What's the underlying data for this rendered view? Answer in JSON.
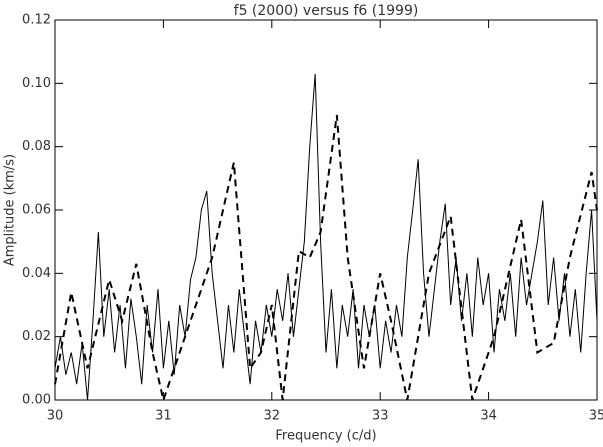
{
  "chart_data": {
    "type": "line",
    "title": "f5 (2000) versus f6 (1999)",
    "x_label": "Frequency (c/d)",
    "y_label": "Amplitude (km/s)",
    "xlim": [
      30,
      35
    ],
    "xticks": [
      30,
      31,
      32,
      33,
      34,
      35
    ],
    "ylim": [
      0,
      0.12
    ],
    "yticks": [
      {
        "value": 0,
        "label": "0.00"
      },
      {
        "value": 0.02,
        "label": "0.02"
      },
      {
        "value": 0.04,
        "label": "0.04"
      },
      {
        "value": 0.06,
        "label": "0.06"
      },
      {
        "value": 0.08,
        "label": "0.08"
      },
      {
        "value": 0.1,
        "label": "0.10"
      },
      {
        "value": 0.12,
        "label": "0.12"
      }
    ],
    "series": [
      {
        "color": "#000000",
        "dash": false,
        "x": [
          30.0,
          30.05,
          30.1,
          30.15,
          30.2,
          30.25,
          30.3,
          30.35,
          30.4,
          30.45,
          30.5,
          30.55,
          30.6,
          30.65,
          30.7,
          30.75,
          30.8,
          30.85,
          30.9,
          30.95,
          31.0,
          31.05,
          31.1,
          31.15,
          31.2,
          31.25,
          31.3,
          31.35,
          31.4,
          31.45,
          31.5,
          31.55,
          31.6,
          31.65,
          31.7,
          31.75,
          31.8,
          31.85,
          31.9,
          31.95,
          32.0,
          32.05,
          32.1,
          32.15,
          32.2,
          32.25,
          32.3,
          32.35,
          32.4,
          32.45,
          32.5,
          32.55,
          32.6,
          32.65,
          32.7,
          32.75,
          32.8,
          32.85,
          32.9,
          32.95,
          33.0,
          33.05,
          33.1,
          33.15,
          33.2,
          33.25,
          33.3,
          33.35,
          33.4,
          33.45,
          33.5,
          33.55,
          33.6,
          33.65,
          33.7,
          33.75,
          33.8,
          33.85,
          33.9,
          33.95,
          34.0,
          34.05,
          34.1,
          34.15,
          34.2,
          34.25,
          34.3,
          34.35,
          34.4,
          34.45,
          34.5,
          34.55,
          34.6,
          34.65,
          34.7,
          34.75,
          34.8,
          34.85,
          34.9,
          34.95,
          35.0
        ],
        "values": [
          0.01,
          0.02,
          0.008,
          0.015,
          0.005,
          0.018,
          0.0,
          0.025,
          0.053,
          0.02,
          0.035,
          0.015,
          0.03,
          0.01,
          0.032,
          0.02,
          0.005,
          0.03,
          0.015,
          0.035,
          0.01,
          0.025,
          0.008,
          0.03,
          0.02,
          0.038,
          0.045,
          0.06,
          0.066,
          0.04,
          0.025,
          0.01,
          0.03,
          0.015,
          0.035,
          0.02,
          0.005,
          0.025,
          0.015,
          0.03,
          0.02,
          0.035,
          0.025,
          0.04,
          0.02,
          0.035,
          0.05,
          0.08,
          0.103,
          0.05,
          0.015,
          0.035,
          0.01,
          0.03,
          0.02,
          0.035,
          0.01,
          0.03,
          0.02,
          0.03,
          0.01,
          0.025,
          0.015,
          0.03,
          0.02,
          0.045,
          0.06,
          0.076,
          0.04,
          0.02,
          0.035,
          0.05,
          0.062,
          0.03,
          0.045,
          0.025,
          0.04,
          0.02,
          0.045,
          0.03,
          0.04,
          0.015,
          0.035,
          0.025,
          0.04,
          0.02,
          0.045,
          0.03,
          0.04,
          0.05,
          0.063,
          0.03,
          0.045,
          0.025,
          0.04,
          0.02,
          0.035,
          0.015,
          0.04,
          0.06,
          0.025
        ]
      },
      {
        "color": "#000000",
        "dash": true,
        "x": [
          30.0,
          30.15,
          30.3,
          30.5,
          30.62,
          30.75,
          30.9,
          31.0,
          31.1,
          31.3,
          31.45,
          31.65,
          31.8,
          31.9,
          32.0,
          32.1,
          32.25,
          32.35,
          32.45,
          32.6,
          32.7,
          32.85,
          33.0,
          33.1,
          33.25,
          33.45,
          33.65,
          33.85,
          34.05,
          34.3,
          34.45,
          34.6,
          34.75,
          34.95,
          35.0
        ],
        "values": [
          0.005,
          0.034,
          0.01,
          0.038,
          0.025,
          0.043,
          0.015,
          0.0,
          0.01,
          0.03,
          0.045,
          0.075,
          0.01,
          0.015,
          0.03,
          0.0,
          0.047,
          0.045,
          0.053,
          0.09,
          0.045,
          0.01,
          0.04,
          0.025,
          0.0,
          0.04,
          0.058,
          0.0,
          0.02,
          0.057,
          0.015,
          0.018,
          0.045,
          0.072,
          0.06
        ]
      }
    ]
  }
}
